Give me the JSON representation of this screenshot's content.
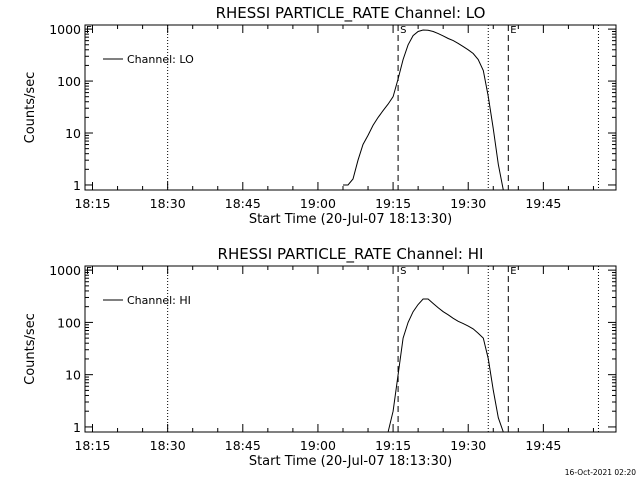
{
  "colors": {
    "background": "#ffffff",
    "ink": "#000000"
  },
  "footer_timestamp": "16-Oct-2021 02:20",
  "chart_data": [
    {
      "type": "line",
      "title": "RHESSI PARTICLE_RATE Channel: LO",
      "xlabel": "Start Time (20-Jul-07 18:13:30)",
      "ylabel": "Counts/sec",
      "y_scale": "log",
      "ylim": [
        0.8,
        1200
      ],
      "xlim": [
        "18:13:30",
        "19:59:30"
      ],
      "x_ticks": [
        "18:15",
        "18:30",
        "18:45",
        "19:00",
        "19:15",
        "19:30",
        "19:45"
      ],
      "y_ticks": [
        "1",
        "10",
        "100",
        "1000"
      ],
      "grid": false,
      "legend_position": "top-left",
      "dotted_vlines": [
        "18:30",
        "19:34",
        "19:56"
      ],
      "dashed_vlines": [
        {
          "x": "19:16",
          "label": "S"
        },
        {
          "x": "19:38",
          "label": "E"
        }
      ],
      "flag_marker": "F",
      "series": [
        {
          "name": "Channel: LO",
          "x": [
            "19:05",
            "19:06",
            "19:07",
            "19:08",
            "19:09",
            "19:10",
            "19:11",
            "19:12",
            "19:13",
            "19:14",
            "19:15",
            "19:16",
            "19:17",
            "19:18",
            "19:19",
            "19:20",
            "19:21",
            "19:22",
            "19:23",
            "19:24",
            "19:25",
            "19:26",
            "19:27",
            "19:28",
            "19:29",
            "19:30",
            "19:31",
            "19:32",
            "19:33",
            "19:34",
            "19:35",
            "19:36",
            "19:37"
          ],
          "values": [
            1,
            1,
            1.3,
            3,
            6,
            9,
            14,
            20,
            27,
            36,
            50,
            110,
            260,
            500,
            750,
            900,
            960,
            950,
            900,
            820,
            740,
            660,
            600,
            530,
            460,
            400,
            340,
            260,
            160,
            50,
            12,
            2.5,
            0.8
          ]
        }
      ]
    },
    {
      "type": "line",
      "title": "RHESSI PARTICLE_RATE Channel: HI",
      "xlabel": "Start Time (20-Jul-07 18:13:30)",
      "ylabel": "Counts/sec",
      "y_scale": "log",
      "ylim": [
        0.8,
        1200
      ],
      "xlim": [
        "18:13:30",
        "19:59:30"
      ],
      "x_ticks": [
        "18:15",
        "18:30",
        "18:45",
        "19:00",
        "19:15",
        "19:30",
        "19:45"
      ],
      "y_ticks": [
        "1",
        "10",
        "100",
        "1000"
      ],
      "grid": false,
      "legend_position": "top-left",
      "dotted_vlines": [
        "18:30",
        "19:34",
        "19:56"
      ],
      "dashed_vlines": [
        {
          "x": "19:16",
          "label": "S"
        },
        {
          "x": "19:38",
          "label": "E"
        }
      ],
      "flag_marker": "F",
      "series": [
        {
          "name": "Channel: HI",
          "x": [
            "19:14",
            "19:15",
            "19:16",
            "19:17",
            "19:18",
            "19:19",
            "19:20",
            "19:21",
            "19:22",
            "19:23",
            "19:24",
            "19:25",
            "19:26",
            "19:27",
            "19:28",
            "19:29",
            "19:30",
            "19:31",
            "19:32",
            "19:33",
            "19:34",
            "19:35",
            "19:36",
            "19:37"
          ],
          "values": [
            0.8,
            2,
            10,
            50,
            100,
            160,
            220,
            280,
            280,
            230,
            190,
            160,
            140,
            120,
            105,
            95,
            85,
            75,
            62,
            50,
            20,
            5,
            1.5,
            0.8
          ]
        }
      ]
    }
  ]
}
